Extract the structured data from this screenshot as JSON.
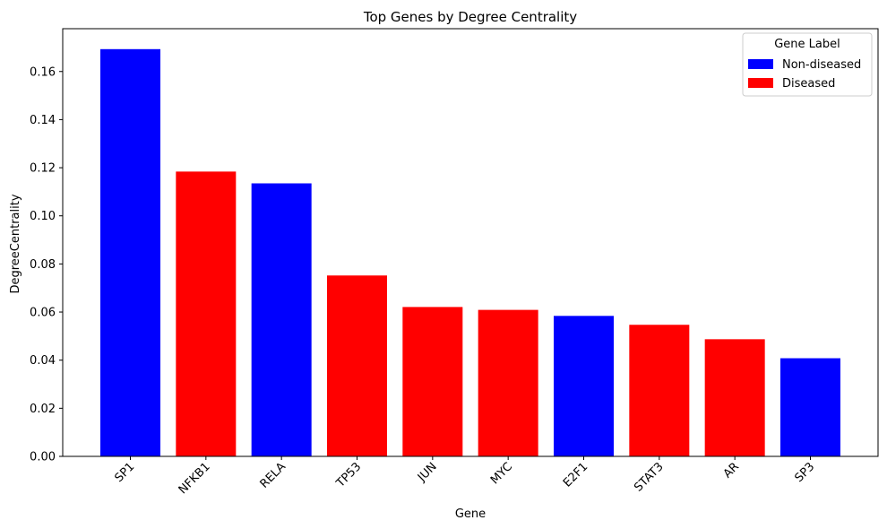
{
  "chart_data": {
    "type": "bar",
    "title": "Top Genes by Degree Centrality",
    "xlabel": "Gene",
    "ylabel": "DegreeCentrality",
    "categories": [
      "SP1",
      "NFKB1",
      "RELA",
      "TP53",
      "JUN",
      "MYC",
      "E2F1",
      "STAT3",
      "AR",
      "SP3"
    ],
    "values": [
      0.1693,
      0.1184,
      0.1135,
      0.0752,
      0.0621,
      0.0609,
      0.0584,
      0.0547,
      0.0487,
      0.0408
    ],
    "labels": [
      "Non-diseased",
      "Diseased",
      "Non-diseased",
      "Diseased",
      "Diseased",
      "Diseased",
      "Non-diseased",
      "Diseased",
      "Diseased",
      "Non-diseased"
    ],
    "ylim": [
      0,
      0.1778
    ],
    "yticks": [
      "0.00",
      "0.02",
      "0.04",
      "0.06",
      "0.08",
      "0.10",
      "0.12",
      "0.14",
      "0.16"
    ],
    "ytick_values": [
      0,
      0.02,
      0.04,
      0.06,
      0.08,
      0.1,
      0.12,
      0.14,
      0.16
    ],
    "grid": false,
    "legend": {
      "title": "Gene Label",
      "placement": "top-right",
      "entries": [
        {
          "name": "Non-diseased",
          "color": "#0000ff"
        },
        {
          "name": "Diseased",
          "color": "#ff0000"
        }
      ]
    }
  }
}
